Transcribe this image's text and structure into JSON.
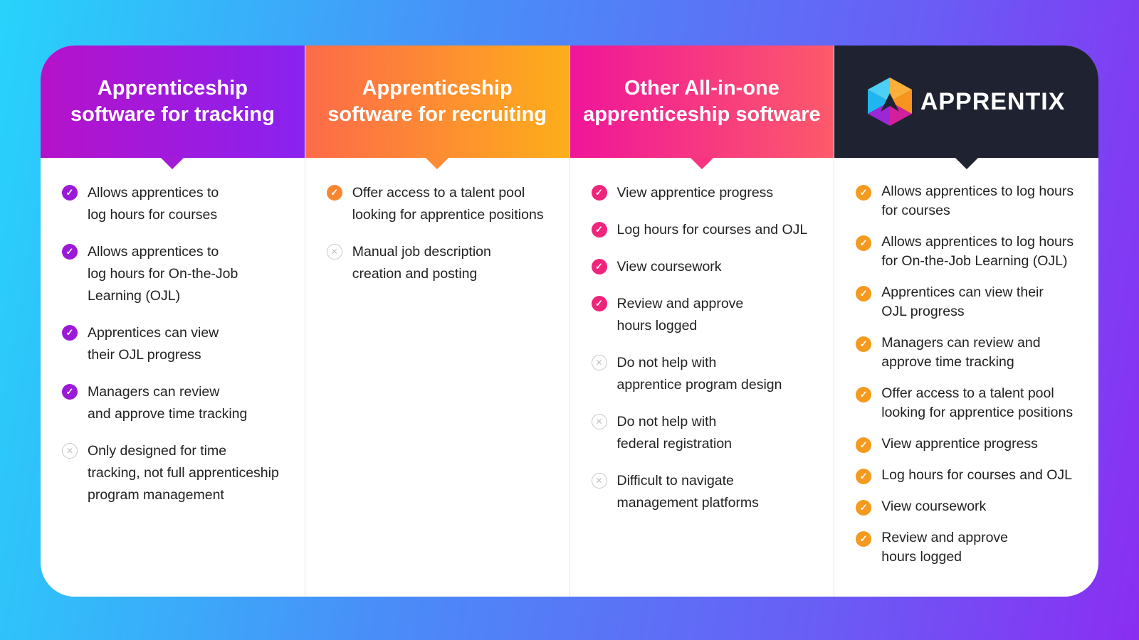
{
  "columns": [
    {
      "title": "Apprenticeship\nsoftware for tracking",
      "accent": "#9b1ad8",
      "items": [
        {
          "type": "check",
          "text": "Allows apprentices to\nlog hours for courses"
        },
        {
          "type": "check",
          "text": "Allows apprentices to\nlog hours for On-the-Job\nLearning (OJL)"
        },
        {
          "type": "check",
          "text": "Apprentices can view\ntheir OJL progress"
        },
        {
          "type": "check",
          "text": "Managers can review\nand approve time tracking"
        },
        {
          "type": "cross",
          "text": "Only designed for time\ntracking, not full apprenticeship\nprogram management"
        }
      ]
    },
    {
      "title": "Apprenticeship\nsoftware for recruiting",
      "accent": "#f7862e",
      "items": [
        {
          "type": "check",
          "text": "Offer access to a talent pool\nlooking for apprentice positions"
        },
        {
          "type": "cross",
          "text": "Manual job description\ncreation and posting"
        }
      ]
    },
    {
      "title": "Other All-in-one\napprenticeship software",
      "accent": "#f0247a",
      "items": [
        {
          "type": "check",
          "text": "View apprentice progress"
        },
        {
          "type": "check",
          "text": "Log hours for courses and OJL"
        },
        {
          "type": "check",
          "text": "View coursework"
        },
        {
          "type": "check",
          "text": "Review and approve\nhours logged"
        },
        {
          "type": "cross",
          "text": "Do not help with\napprentice program design"
        },
        {
          "type": "cross",
          "text": "Do not help with\nfederal registration"
        },
        {
          "type": "cross",
          "text": "Difficult to navigate\nmanagement platforms"
        }
      ]
    },
    {
      "title": "APPRENTIX",
      "accent": "#f39a1f",
      "items": [
        {
          "type": "check",
          "text": "Allows apprentices to log hours\nfor courses"
        },
        {
          "type": "check",
          "text": "Allows apprentices to log hours\nfor On-the-Job Learning (OJL)"
        },
        {
          "type": "check",
          "text": "Apprentices can view their\nOJL progress"
        },
        {
          "type": "check",
          "text": "Managers can review and\napprove time tracking"
        },
        {
          "type": "check",
          "text": "Offer access to a talent pool\nlooking for apprentice positions"
        },
        {
          "type": "check",
          "text": "View apprentice progress"
        },
        {
          "type": "check",
          "text": "Log hours for courses and OJL"
        },
        {
          "type": "check",
          "text": "View coursework"
        },
        {
          "type": "check",
          "text": "Review and approve\nhours logged"
        }
      ]
    }
  ],
  "icons": {
    "check": "check-circle-icon",
    "cross": "x-circle-icon"
  }
}
